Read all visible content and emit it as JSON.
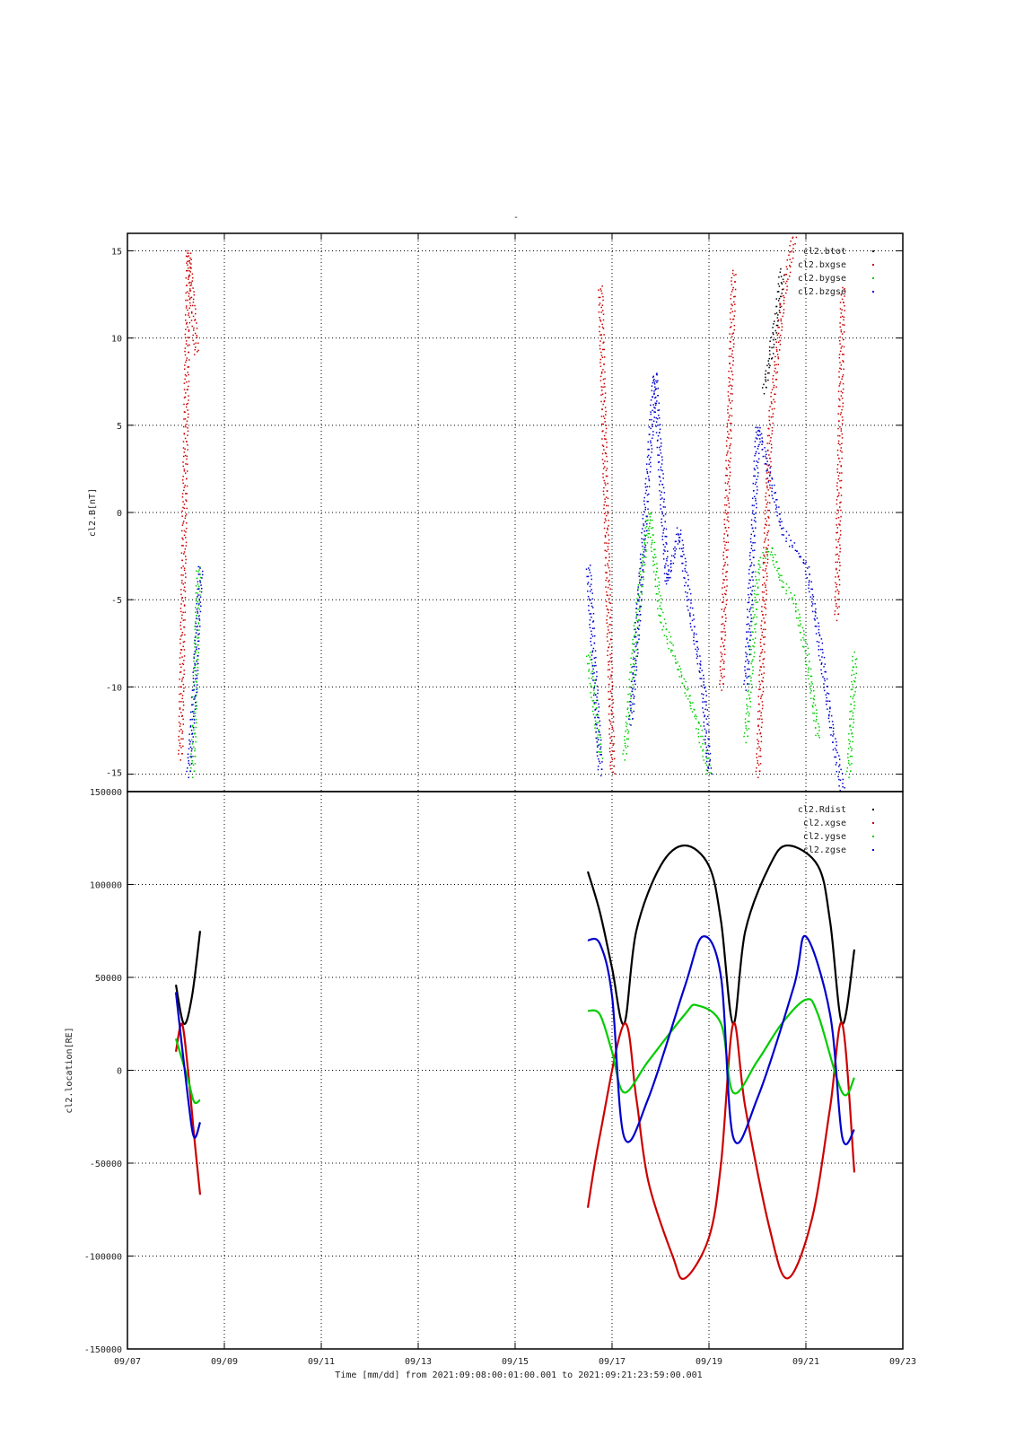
{
  "page": {
    "top_mark": "-"
  },
  "chart_data": [
    {
      "type": "scatter",
      "ylabel": "cl2.B[nT]",
      "ylim": [
        -16,
        16
      ],
      "yticks": [
        -15,
        -10,
        -5,
        0,
        5,
        10,
        15
      ],
      "xlim": [
        "2021-09-07",
        "2021-09-23"
      ],
      "grid": true,
      "legend_position": "top-right",
      "series": [
        {
          "name": "cl2.btot",
          "color": "#000000",
          "segments": [
            [
              [
                "09/20 03:00",
                7
              ],
              [
                "09/20 06:00",
                9
              ],
              [
                "09/20 09:00",
                11
              ],
              [
                "09/20 12:00",
                14
              ]
            ]
          ]
        },
        {
          "name": "cl2.bxgse",
          "color": "#cc0000",
          "segments": [
            [
              [
                "09/08 02:00",
                -14
              ],
              [
                "09/08 06:00",
                15
              ],
              [
                "09/08 10:00",
                9
              ]
            ],
            [
              [
                "09/16 18:00",
                13
              ],
              [
                "09/17 00:00",
                -15
              ]
            ],
            [
              [
                "09/19 06:00",
                -10
              ],
              [
                "09/19 12:00",
                14
              ]
            ],
            [
              [
                "09/20 00:00",
                -15
              ],
              [
                "09/20 06:00",
                5
              ],
              [
                "09/20 12:00",
                12
              ],
              [
                "09/20 18:00",
                16
              ]
            ],
            [
              [
                "09/21 15:00",
                -6
              ],
              [
                "09/21 18:00",
                13
              ]
            ]
          ]
        },
        {
          "name": "cl2.bygse",
          "color": "#00cc00",
          "segments": [
            [
              [
                "09/08 08:00",
                -15
              ],
              [
                "09/08 11:00",
                -3
              ]
            ],
            [
              [
                "09/16 12:00",
                -8
              ],
              [
                "09/16 18:00",
                -14
              ]
            ],
            [
              [
                "09/17 06:00",
                -14
              ],
              [
                "09/17 12:00",
                -6
              ],
              [
                "09/17 18:00",
                0
              ],
              [
                "09/18 00:00",
                -6
              ],
              [
                "09/18 06:00",
                -8
              ],
              [
                "09/18 12:00",
                -10
              ],
              [
                "09/18 18:00",
                -12
              ],
              [
                "09/19 00:00",
                -15
              ]
            ],
            [
              [
                "09/19 18:00",
                -13
              ],
              [
                "09/20 00:00",
                -3
              ],
              [
                "09/20 06:00",
                -2
              ],
              [
                "09/20 12:00",
                -4
              ],
              [
                "09/20 18:00",
                -5
              ],
              [
                "09/21 00:00",
                -8
              ],
              [
                "09/21 06:00",
                -13
              ]
            ],
            [
              [
                "09/21 21:00",
                -15
              ],
              [
                "09/22 00:00",
                -8
              ]
            ]
          ]
        },
        {
          "name": "cl2.bzgse",
          "color": "#0000cc",
          "segments": [
            [
              [
                "09/08 06:00",
                -15
              ],
              [
                "09/08 09:00",
                -10
              ],
              [
                "09/08 12:00",
                -3
              ]
            ],
            [
              [
                "09/16 12:00",
                -3
              ],
              [
                "09/16 18:00",
                -15
              ]
            ],
            [
              [
                "09/17 09:00",
                -12
              ],
              [
                "09/17 15:00",
                -2
              ],
              [
                "09/17 21:00",
                8
              ],
              [
                "09/18 03:00",
                -4
              ],
              [
                "09/18 09:00",
                -1
              ],
              [
                "09/18 15:00",
                -6
              ],
              [
                "09/18 21:00",
                -10
              ],
              [
                "09/19 00:00",
                -15
              ]
            ],
            [
              [
                "09/19 18:00",
                -10
              ],
              [
                "09/20 00:00",
                5
              ],
              [
                "09/20 06:00",
                2
              ],
              [
                "09/20 12:00",
                -1
              ],
              [
                "09/20 18:00",
                -2
              ],
              [
                "09/21 00:00",
                -3
              ],
              [
                "09/21 06:00",
                -7
              ],
              [
                "09/21 12:00",
                -12
              ],
              [
                "09/21 18:00",
                -16
              ]
            ]
          ]
        }
      ]
    },
    {
      "type": "line",
      "ylabel": "cl2.location[RE]",
      "ylim": [
        -150000,
        150000
      ],
      "yticks": [
        -150000,
        -100000,
        -50000,
        0,
        50000,
        100000,
        150000
      ],
      "xlim": [
        "2021-09-07",
        "2021-09-23"
      ],
      "xticks": [
        "09/07",
        "09/09",
        "09/11",
        "09/13",
        "09/15",
        "09/17",
        "09/19",
        "09/21",
        "09/23"
      ],
      "xlabel": "Time [mm/dd]  from 2021:09:08:00:01:00.001  to  2021:09:21:23:59:00.001",
      "grid": true,
      "legend_position": "top-right",
      "series": [
        {
          "name": "cl2.Rdist",
          "color": "#000000",
          "segments": [
            [
              [
                "09/08 00:00",
                46000
              ],
              [
                "09/08 04:00",
                25000
              ],
              [
                "09/08 08:00",
                40000
              ],
              [
                "09/08 12:00",
                75000
              ]
            ],
            [
              [
                "09/16 12:00",
                107000
              ],
              [
                "09/16 18:00",
                85000
              ],
              [
                "09/17 00:00",
                55000
              ],
              [
                "09/17 06:00",
                25000
              ],
              [
                "09/17 12:00",
                75000
              ],
              [
                "09/18 00:00",
                110000
              ],
              [
                "09/18 12:00",
                121000
              ],
              [
                "09/19 00:00",
                110000
              ],
              [
                "09/19 06:00",
                80000
              ],
              [
                "09/19 12:00",
                25000
              ],
              [
                "09/19 18:00",
                75000
              ],
              [
                "09/20 06:00",
                110000
              ],
              [
                "09/20 15:00",
                121000
              ],
              [
                "09/21 06:00",
                110000
              ],
              [
                "09/21 12:00",
                80000
              ],
              [
                "09/21 18:00",
                25000
              ],
              [
                "09/22 00:00",
                65000
              ]
            ]
          ]
        },
        {
          "name": "cl2.xgse",
          "color": "#cc0000",
          "segments": [
            [
              [
                "09/08 00:00",
                10000
              ],
              [
                "09/08 03:00",
                25000
              ],
              [
                "09/08 06:00",
                0
              ],
              [
                "09/08 09:00",
                -35000
              ],
              [
                "09/08 12:00",
                -67000
              ]
            ],
            [
              [
                "09/16 12:00",
                -74000
              ],
              [
                "09/16 18:00",
                -35000
              ],
              [
                "09/17 06:00",
                25000
              ],
              [
                "09/17 12:00",
                -15000
              ],
              [
                "09/17 18:00",
                -60000
              ],
              [
                "09/18 06:00",
                -100000
              ],
              [
                "09/18 12:00",
                -112000
              ],
              [
                "09/19 00:00",
                -90000
              ],
              [
                "09/19 06:00",
                -50000
              ],
              [
                "09/19 12:00",
                25000
              ],
              [
                "09/19 18:00",
                -20000
              ],
              [
                "09/20 06:00",
                -85000
              ],
              [
                "09/20 15:00",
                -112000
              ],
              [
                "09/21 03:00",
                -80000
              ],
              [
                "09/21 12:00",
                -20000
              ],
              [
                "09/21 18:00",
                25000
              ],
              [
                "09/22 00:00",
                -55000
              ]
            ]
          ]
        },
        {
          "name": "cl2.ygse",
          "color": "#00cc00",
          "segments": [
            [
              [
                "09/08 00:00",
                17000
              ],
              [
                "09/08 06:00",
                -5000
              ],
              [
                "09/08 09:00",
                -17000
              ],
              [
                "09/08 12:00",
                -16000
              ]
            ],
            [
              [
                "09/16 12:00",
                32000
              ],
              [
                "09/16 18:00",
                30000
              ],
              [
                "09/17 00:00",
                10000
              ],
              [
                "09/17 06:00",
                -12000
              ],
              [
                "09/17 18:00",
                5000
              ],
              [
                "09/18 12:00",
                30000
              ],
              [
                "09/18 18:00",
                35000
              ],
              [
                "09/19 06:00",
                25000
              ],
              [
                "09/19 12:00",
                -12000
              ],
              [
                "09/20 00:00",
                5000
              ],
              [
                "09/20 12:00",
                25000
              ],
              [
                "09/21 00:00",
                38000
              ],
              [
                "09/21 06:00",
                30000
              ],
              [
                "09/21 18:00",
                -12000
              ],
              [
                "09/22 00:00",
                -4000
              ]
            ]
          ]
        },
        {
          "name": "cl2.zgse",
          "color": "#0000cc",
          "segments": [
            [
              [
                "09/08 00:00",
                42000
              ],
              [
                "09/08 06:00",
                -15000
              ],
              [
                "09/08 09:00",
                -36000
              ],
              [
                "09/08 12:00",
                -28000
              ]
            ],
            [
              [
                "09/16 12:00",
                70000
              ],
              [
                "09/16 18:00",
                68000
              ],
              [
                "09/17 00:00",
                40000
              ],
              [
                "09/17 06:00",
                -36000
              ],
              [
                "09/17 18:00",
                -15000
              ],
              [
                "09/18 12:00",
                45000
              ],
              [
                "09/18 21:00",
                72000
              ],
              [
                "09/19 06:00",
                50000
              ],
              [
                "09/19 12:00",
                -36000
              ],
              [
                "09/20 00:00",
                -15000
              ],
              [
                "09/20 18:00",
                45000
              ],
              [
                "09/21 00:00",
                72000
              ],
              [
                "09/21 12:00",
                30000
              ],
              [
                "09/21 18:00",
                -36000
              ],
              [
                "09/22 00:00",
                -32000
              ]
            ]
          ]
        }
      ]
    }
  ]
}
